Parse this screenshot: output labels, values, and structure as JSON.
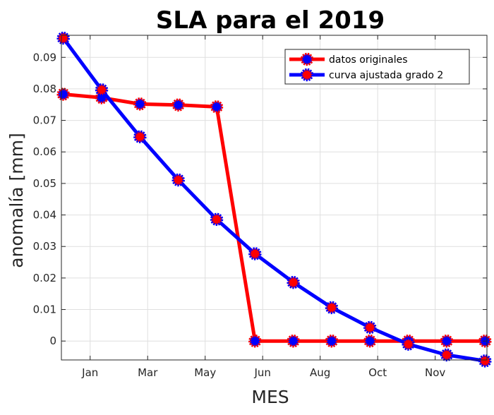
{
  "chart_data": {
    "type": "line",
    "title": "SLA para el 2019",
    "xlabel": "MES",
    "ylabel": "anomalía [mm]",
    "x": [
      1,
      2,
      3,
      4,
      5,
      6,
      7,
      8,
      9,
      10,
      11,
      12
    ],
    "xlim": [
      0.95,
      12.05
    ],
    "xticks": [
      1.7,
      3.2,
      4.7,
      6.2,
      7.7,
      9.2,
      10.7
    ],
    "xtick_labels": [
      "Jan",
      "Mar",
      "May",
      "Jun",
      "Aug",
      "Oct",
      "Nov"
    ],
    "ylim": [
      -0.006,
      0.097
    ],
    "yticks": [
      0,
      0.01,
      0.02,
      0.03,
      0.04,
      0.05,
      0.06,
      0.07,
      0.08,
      0.09
    ],
    "ytick_labels": [
      "0",
      "0.01",
      "0.02",
      "0.03",
      "0.04",
      "0.05",
      "0.06",
      "0.07",
      "0.08",
      "0.09"
    ],
    "grid": true,
    "legend_position": "top-right",
    "series": [
      {
        "name": "datos originales",
        "color": "#ff0000",
        "marker_fill": "#0000ff",
        "values": [
          0.0783,
          0.0772,
          0.0752,
          0.0749,
          0.0743,
          0.0,
          0.0,
          0.0,
          0.0,
          0.0,
          0.0,
          0.0
        ]
      },
      {
        "name": "curva ajustada grado 2",
        "color": "#0000ff",
        "marker_fill": "#ff0000",
        "values": [
          0.0961,
          0.0797,
          0.0648,
          0.0511,
          0.0386,
          0.0277,
          0.0186,
          0.0106,
          0.0043,
          -0.001,
          -0.0044,
          -0.0063
        ]
      }
    ]
  }
}
